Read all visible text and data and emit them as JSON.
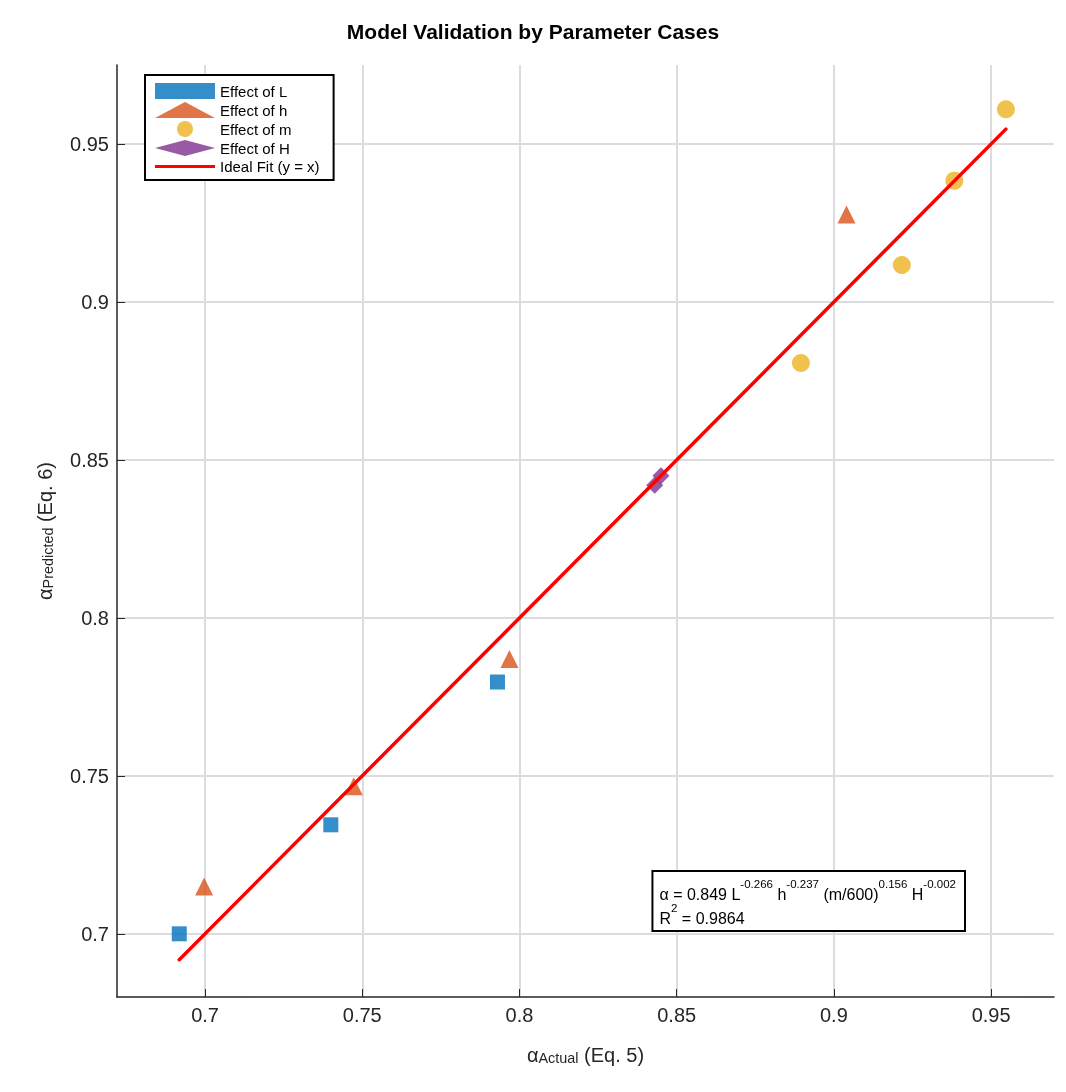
{
  "chart_data": {
    "type": "scatter",
    "title": "Model Validation by Parameter Cases",
    "xlabel": "α$_{Actual}$ (Eq. 5)",
    "ylabel": "α$_{Predicted}$ (Eq. 6)",
    "xlim": [
      0.672,
      0.97
    ],
    "ylim": [
      0.68,
      0.975
    ],
    "xticks": [
      0.7,
      0.75,
      0.8,
      0.85,
      0.9,
      0.95
    ],
    "yticks": [
      0.7,
      0.75,
      0.8,
      0.85,
      0.9,
      0.95
    ],
    "grid": true,
    "legend": "top left",
    "series": [
      {
        "name": "Effect of L",
        "color": "#0072bd",
        "marker": "square",
        "x": [
          0.6918,
          0.74,
          0.793
        ],
        "values": [
          0.7,
          0.7345,
          0.7797
        ]
      },
      {
        "name": "Effect of h",
        "color": "#d95319",
        "marker": "triangle",
        "x": [
          0.6997,
          0.7473,
          0.7968,
          0.904
        ],
        "values": [
          0.715,
          0.7467,
          0.787,
          0.9277
        ]
      },
      {
        "name": "Effect of m",
        "color": "#edb120",
        "marker": "circle",
        "x": [
          0.8895,
          0.9216,
          0.9383,
          0.9547
        ],
        "values": [
          0.8807,
          0.9117,
          0.9384,
          0.961
        ]
      },
      {
        "name": "Effect of H",
        "color": "#7e2f8e",
        "marker": "diamond",
        "x": [
          0.843,
          0.845
        ],
        "values": [
          0.842,
          0.845
        ]
      },
      {
        "name": "Ideal Fit (y = x)",
        "color": "#ff0000",
        "type": "line",
        "marker": "none",
        "line_style": "solid",
        "x": [
          0.6918,
          0.9547
        ],
        "values": [
          0.6918,
          0.9547
        ]
      }
    ],
    "annotations": [
      "α = 0.849 L$^{-0.266}$ h$^{-0.237}$ (m/600)$^{0.156}$ H$^{-0.002}$",
      "R$^{2}$ = 0.9864"
    ]
  }
}
